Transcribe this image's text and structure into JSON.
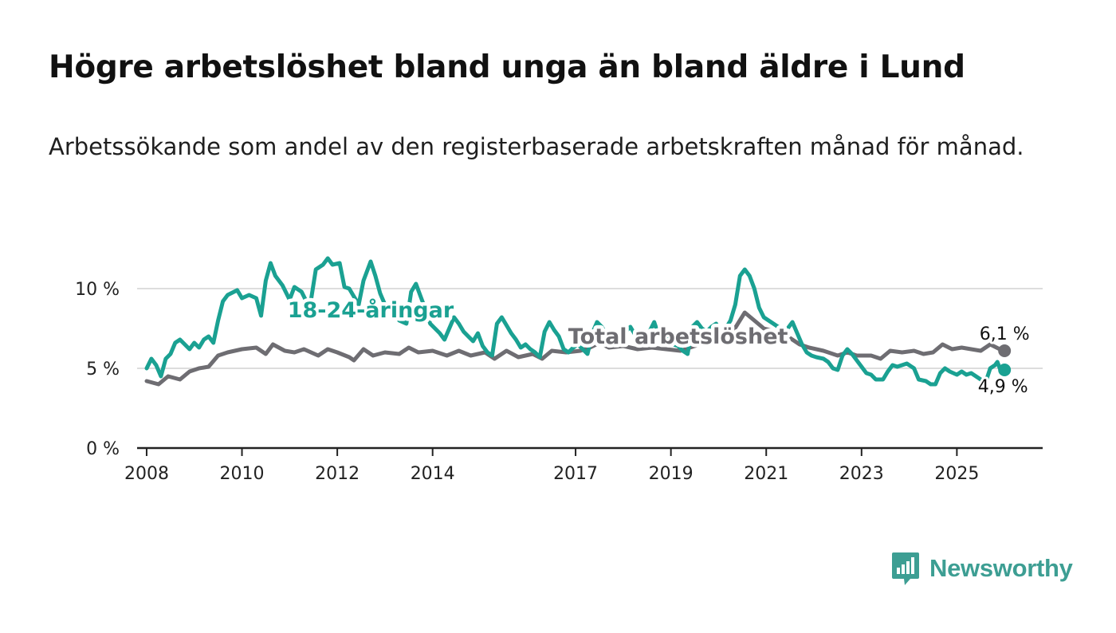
{
  "title": "Högre arbetslöshet bland unga än bland äldre i Lund",
  "subtitle": "Arbetssökande som andel av den registerbaserade arbetskraften månad för månad.",
  "brand": "Newsworthy",
  "colors": {
    "youth": "#1aa192",
    "total": "#6e6d72",
    "grid": "#dddddd",
    "brand": "#3d9e93"
  },
  "chart_data": {
    "type": "line",
    "title": "Högre arbetslöshet bland unga än bland äldre i Lund",
    "xlabel": "",
    "ylabel": "",
    "xlim": [
      2007.8,
      2026.8
    ],
    "ylim": [
      0,
      12
    ],
    "y_ticks": [
      0,
      5,
      10
    ],
    "y_tick_labels": [
      "0 %",
      "5 %",
      "10 %"
    ],
    "x_ticks": [
      2008,
      2010,
      2012,
      2014,
      2017,
      2019,
      2021,
      2023,
      2025
    ],
    "x_tick_labels": [
      "2008",
      "2010",
      "2012",
      "2014",
      "2017",
      "2019",
      "2021",
      "2023",
      "2025"
    ],
    "series": [
      {
        "name": "Total arbetslöshet",
        "key": "total",
        "label": "Total arbetslöshet",
        "end_label": "6,1 %",
        "points": [
          [
            2008.0,
            4.2
          ],
          [
            2008.25,
            4.0
          ],
          [
            2008.45,
            4.5
          ],
          [
            2008.7,
            4.3
          ],
          [
            2008.9,
            4.8
          ],
          [
            2009.1,
            5.0
          ],
          [
            2009.3,
            5.1
          ],
          [
            2009.5,
            5.8
          ],
          [
            2009.7,
            6.0
          ],
          [
            2010.0,
            6.2
          ],
          [
            2010.3,
            6.3
          ],
          [
            2010.5,
            5.9
          ],
          [
            2010.65,
            6.5
          ],
          [
            2010.9,
            6.1
          ],
          [
            2011.1,
            6.0
          ],
          [
            2011.3,
            6.2
          ],
          [
            2011.6,
            5.8
          ],
          [
            2011.8,
            6.2
          ],
          [
            2012.0,
            6.0
          ],
          [
            2012.25,
            5.7
          ],
          [
            2012.35,
            5.5
          ],
          [
            2012.55,
            6.2
          ],
          [
            2012.75,
            5.8
          ],
          [
            2013.0,
            6.0
          ],
          [
            2013.3,
            5.9
          ],
          [
            2013.5,
            6.3
          ],
          [
            2013.7,
            6.0
          ],
          [
            2014.0,
            6.1
          ],
          [
            2014.3,
            5.8
          ],
          [
            2014.55,
            6.1
          ],
          [
            2014.8,
            5.8
          ],
          [
            2015.1,
            6.0
          ],
          [
            2015.3,
            5.6
          ],
          [
            2015.55,
            6.1
          ],
          [
            2015.8,
            5.7
          ],
          [
            2016.1,
            5.9
          ],
          [
            2016.3,
            5.6
          ],
          [
            2016.5,
            6.1
          ],
          [
            2016.8,
            6.0
          ],
          [
            2017.1,
            6.1
          ],
          [
            2017.3,
            6.3
          ],
          [
            2017.5,
            6.6
          ],
          [
            2017.7,
            6.3
          ],
          [
            2018.0,
            6.4
          ],
          [
            2018.3,
            6.2
          ],
          [
            2018.6,
            6.3
          ],
          [
            2018.9,
            6.2
          ],
          [
            2019.2,
            6.1
          ],
          [
            2019.4,
            6.3
          ],
          [
            2019.6,
            6.5
          ],
          [
            2019.9,
            6.8
          ],
          [
            2020.1,
            7.0
          ],
          [
            2020.3,
            7.3
          ],
          [
            2020.55,
            8.5
          ],
          [
            2020.75,
            8.0
          ],
          [
            2020.95,
            7.5
          ],
          [
            2021.2,
            7.3
          ],
          [
            2021.5,
            6.9
          ],
          [
            2021.7,
            6.5
          ],
          [
            2021.9,
            6.3
          ],
          [
            2022.2,
            6.1
          ],
          [
            2022.5,
            5.8
          ],
          [
            2022.7,
            6.0
          ],
          [
            2022.9,
            5.8
          ],
          [
            2023.2,
            5.8
          ],
          [
            2023.4,
            5.6
          ],
          [
            2023.6,
            6.1
          ],
          [
            2023.85,
            6.0
          ],
          [
            2024.1,
            6.1
          ],
          [
            2024.3,
            5.9
          ],
          [
            2024.5,
            6.0
          ],
          [
            2024.7,
            6.5
          ],
          [
            2024.9,
            6.2
          ],
          [
            2025.1,
            6.3
          ],
          [
            2025.3,
            6.2
          ],
          [
            2025.5,
            6.1
          ],
          [
            2025.7,
            6.5
          ],
          [
            2025.9,
            6.2
          ],
          [
            2026.0,
            6.1
          ]
        ]
      },
      {
        "name": "18-24-åringar",
        "key": "youth",
        "label": "18-24-åringar",
        "end_label": "4,9 %",
        "points": [
          [
            2008.0,
            5.0
          ],
          [
            2008.1,
            5.6
          ],
          [
            2008.2,
            5.2
          ],
          [
            2008.3,
            4.5
          ],
          [
            2008.4,
            5.6
          ],
          [
            2008.5,
            5.9
          ],
          [
            2008.6,
            6.6
          ],
          [
            2008.7,
            6.8
          ],
          [
            2008.8,
            6.5
          ],
          [
            2008.9,
            6.2
          ],
          [
            2009.0,
            6.6
          ],
          [
            2009.1,
            6.3
          ],
          [
            2009.2,
            6.8
          ],
          [
            2009.3,
            7.0
          ],
          [
            2009.4,
            6.6
          ],
          [
            2009.5,
            8.0
          ],
          [
            2009.6,
            9.2
          ],
          [
            2009.7,
            9.6
          ],
          [
            2009.9,
            9.9
          ],
          [
            2010.0,
            9.4
          ],
          [
            2010.15,
            9.6
          ],
          [
            2010.3,
            9.4
          ],
          [
            2010.4,
            8.3
          ],
          [
            2010.5,
            10.5
          ],
          [
            2010.6,
            11.6
          ],
          [
            2010.7,
            10.8
          ],
          [
            2010.85,
            10.2
          ],
          [
            2011.0,
            9.3
          ],
          [
            2011.1,
            10.1
          ],
          [
            2011.25,
            9.8
          ],
          [
            2011.35,
            9.2
          ],
          [
            2011.45,
            9.3
          ],
          [
            2011.55,
            11.2
          ],
          [
            2011.7,
            11.5
          ],
          [
            2011.8,
            11.9
          ],
          [
            2011.9,
            11.5
          ],
          [
            2012.05,
            11.6
          ],
          [
            2012.15,
            10.1
          ],
          [
            2012.25,
            10.0
          ],
          [
            2012.35,
            9.5
          ],
          [
            2012.45,
            9.0
          ],
          [
            2012.55,
            10.5
          ],
          [
            2012.7,
            11.7
          ],
          [
            2012.8,
            10.8
          ],
          [
            2012.9,
            9.7
          ],
          [
            2013.0,
            9.0
          ],
          [
            2013.15,
            8.8
          ],
          [
            2013.3,
            8.0
          ],
          [
            2013.45,
            7.8
          ],
          [
            2013.55,
            9.8
          ],
          [
            2013.65,
            10.3
          ],
          [
            2013.75,
            9.5
          ],
          [
            2013.85,
            8.7
          ],
          [
            2013.95,
            7.8
          ],
          [
            2014.05,
            7.5
          ],
          [
            2014.15,
            7.2
          ],
          [
            2014.25,
            6.8
          ],
          [
            2014.35,
            7.5
          ],
          [
            2014.45,
            8.2
          ],
          [
            2014.55,
            7.8
          ],
          [
            2014.65,
            7.3
          ],
          [
            2014.75,
            7.0
          ],
          [
            2014.85,
            6.7
          ],
          [
            2014.95,
            7.2
          ],
          [
            2015.05,
            6.4
          ],
          [
            2015.15,
            6.0
          ],
          [
            2015.25,
            5.8
          ],
          [
            2015.35,
            7.8
          ],
          [
            2015.45,
            8.2
          ],
          [
            2015.55,
            7.7
          ],
          [
            2015.65,
            7.2
          ],
          [
            2015.75,
            6.8
          ],
          [
            2015.85,
            6.3
          ],
          [
            2015.95,
            6.5
          ],
          [
            2016.05,
            6.2
          ],
          [
            2016.15,
            6.0
          ],
          [
            2016.25,
            5.7
          ],
          [
            2016.35,
            7.3
          ],
          [
            2016.45,
            7.9
          ],
          [
            2016.55,
            7.4
          ],
          [
            2016.65,
            7.0
          ],
          [
            2016.75,
            6.2
          ],
          [
            2016.85,
            6.0
          ],
          [
            2016.95,
            6.3
          ],
          [
            2017.05,
            6.5
          ],
          [
            2017.15,
            6.2
          ],
          [
            2017.25,
            5.9
          ],
          [
            2017.35,
            7.2
          ],
          [
            2017.45,
            7.9
          ],
          [
            2017.55,
            7.6
          ],
          [
            2017.65,
            7.1
          ],
          [
            2017.75,
            6.8
          ],
          [
            2017.85,
            6.7
          ],
          [
            2017.95,
            7.0
          ],
          [
            2018.05,
            7.3
          ],
          [
            2018.15,
            7.6
          ],
          [
            2018.25,
            7.1
          ],
          [
            2018.35,
            6.8
          ],
          [
            2018.45,
            6.9
          ],
          [
            2018.55,
            7.3
          ],
          [
            2018.65,
            7.9
          ],
          [
            2018.75,
            7.0
          ],
          [
            2018.85,
            6.8
          ],
          [
            2018.95,
            6.9
          ],
          [
            2019.05,
            6.5
          ],
          [
            2019.15,
            6.4
          ],
          [
            2019.25,
            6.1
          ],
          [
            2019.35,
            5.9
          ],
          [
            2019.45,
            7.6
          ],
          [
            2019.55,
            7.9
          ],
          [
            2019.65,
            7.5
          ],
          [
            2019.75,
            7.3
          ],
          [
            2019.85,
            7.6
          ],
          [
            2019.95,
            7.8
          ],
          [
            2020.05,
            7.2
          ],
          [
            2020.15,
            7.5
          ],
          [
            2020.25,
            8.0
          ],
          [
            2020.35,
            9.0
          ],
          [
            2020.45,
            10.8
          ],
          [
            2020.55,
            11.2
          ],
          [
            2020.65,
            10.8
          ],
          [
            2020.75,
            10.0
          ],
          [
            2020.85,
            8.8
          ],
          [
            2020.95,
            8.2
          ],
          [
            2021.05,
            8.0
          ],
          [
            2021.15,
            7.8
          ],
          [
            2021.25,
            7.6
          ],
          [
            2021.35,
            7.2
          ],
          [
            2021.45,
            7.5
          ],
          [
            2021.55,
            7.9
          ],
          [
            2021.65,
            7.2
          ],
          [
            2021.75,
            6.5
          ],
          [
            2021.85,
            6.0
          ],
          [
            2021.95,
            5.8
          ],
          [
            2022.05,
            5.7
          ],
          [
            2022.2,
            5.6
          ],
          [
            2022.3,
            5.4
          ],
          [
            2022.4,
            5.0
          ],
          [
            2022.5,
            4.9
          ],
          [
            2022.6,
            5.8
          ],
          [
            2022.7,
            6.2
          ],
          [
            2022.8,
            5.9
          ],
          [
            2022.9,
            5.5
          ],
          [
            2023.0,
            5.1
          ],
          [
            2023.1,
            4.7
          ],
          [
            2023.2,
            4.6
          ],
          [
            2023.3,
            4.3
          ],
          [
            2023.45,
            4.3
          ],
          [
            2023.55,
            4.8
          ],
          [
            2023.65,
            5.2
          ],
          [
            2023.75,
            5.1
          ],
          [
            2023.85,
            5.2
          ],
          [
            2023.95,
            5.3
          ],
          [
            2024.1,
            5.0
          ],
          [
            2024.2,
            4.3
          ],
          [
            2024.35,
            4.2
          ],
          [
            2024.45,
            4.0
          ],
          [
            2024.55,
            4.0
          ],
          [
            2024.65,
            4.7
          ],
          [
            2024.75,
            5.0
          ],
          [
            2024.85,
            4.8
          ],
          [
            2025.0,
            4.6
          ],
          [
            2025.1,
            4.8
          ],
          [
            2025.2,
            4.6
          ],
          [
            2025.3,
            4.7
          ],
          [
            2025.4,
            4.5
          ],
          [
            2025.5,
            4.3
          ],
          [
            2025.6,
            4.1
          ],
          [
            2025.7,
            5.0
          ],
          [
            2025.8,
            5.2
          ],
          [
            2025.85,
            5.4
          ],
          [
            2025.9,
            5.0
          ],
          [
            2026.0,
            4.9
          ]
        ]
      }
    ],
    "annotations": [
      {
        "text": "18-24-åringar",
        "series": "youth"
      },
      {
        "text": "Total arbetslöshet",
        "series": "total"
      },
      {
        "text": "6,1 %",
        "series": "total",
        "kind": "end-value"
      },
      {
        "text": "4,9 %",
        "series": "youth",
        "kind": "end-value"
      }
    ]
  }
}
